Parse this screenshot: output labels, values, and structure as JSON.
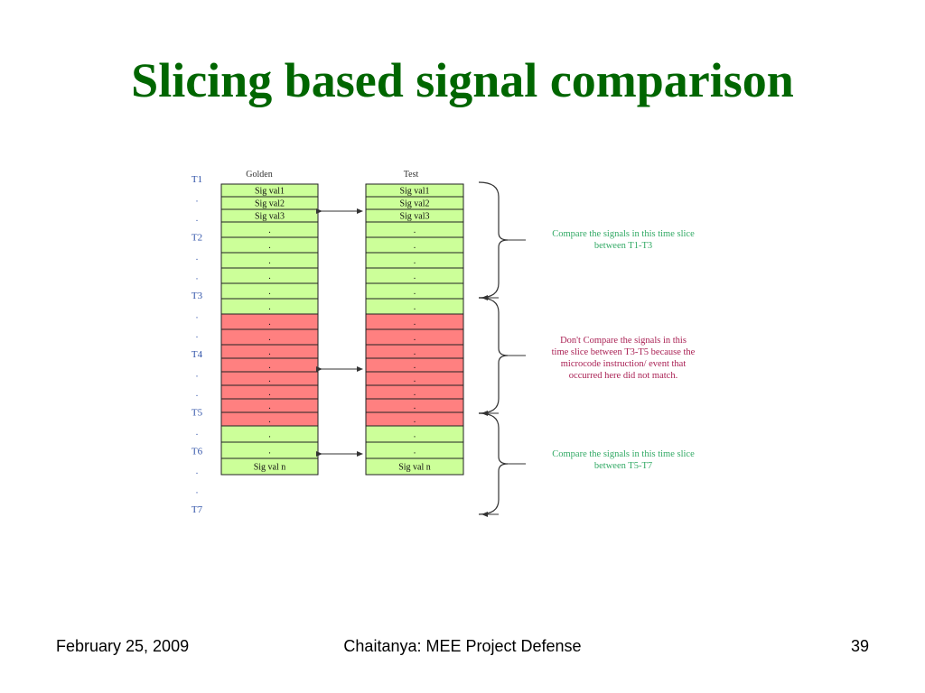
{
  "slide": {
    "title": "Slicing based signal comparison",
    "footer": {
      "date": "February 25, 2009",
      "center": "Chaitanya: MEE Project Defense",
      "page": "39"
    }
  },
  "diagram": {
    "golden_label": "Golden",
    "test_label": "Test",
    "time_labels": [
      "T1",
      ".",
      ".",
      "T2",
      ".",
      ".",
      "T3",
      ".",
      ".",
      "T4",
      ".",
      ".",
      "T5",
      ".",
      "T6",
      ".",
      ".",
      "T7"
    ],
    "golden_cells": [
      "Sig val1",
      "Sig val2",
      "Sig val3",
      ".",
      ".",
      ".",
      ".",
      ".",
      ".",
      ".",
      ".",
      ".",
      ".",
      ".",
      ".",
      ".",
      ".",
      ".",
      ".",
      "Sig val n"
    ],
    "test_cells": [
      "Sig val1",
      "Sig val2",
      "Sig val3",
      ".",
      ".",
      ".",
      ".",
      ".",
      ".",
      ".",
      ".",
      ".",
      ".",
      ".",
      ".",
      ".",
      ".",
      ".",
      ".",
      "Sig val n"
    ],
    "annotations": [
      {
        "lines": [
          "Compare the signals in this time slice",
          "between T1-T3"
        ],
        "color": "#33aa66"
      },
      {
        "lines": [
          "Don't Compare the signals  in this",
          "time slice  between T3-T5  because the",
          "microcode instruction/ event that",
          "occurred here  did not match."
        ],
        "color": "#aa2255"
      },
      {
        "lines": [
          "Compare the signals in this time slice",
          "between T5-T7"
        ],
        "color": "#33aa66"
      }
    ],
    "colors": {
      "green": "#ccff99",
      "red": "#ff8080",
      "label_blue": "#3355aa"
    }
  }
}
